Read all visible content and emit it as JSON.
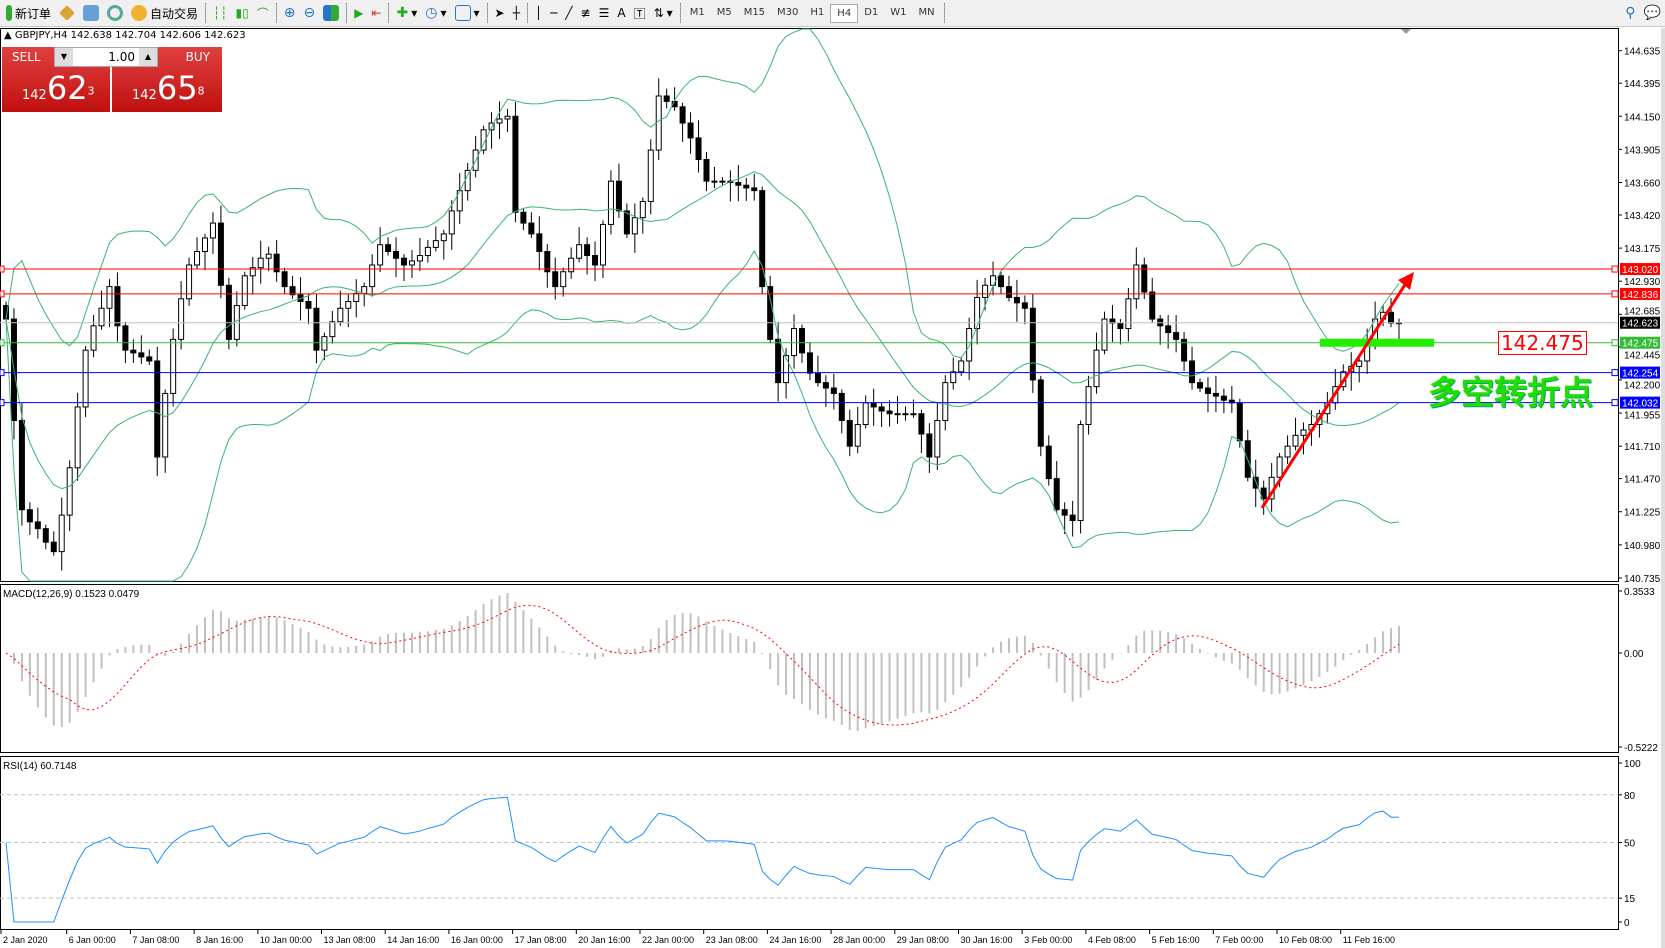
{
  "toolbar": {
    "new_order": "新订单",
    "auto_trading": "自动交易",
    "timeframes": [
      "M1",
      "M5",
      "M15",
      "M30",
      "H1",
      "H4",
      "D1",
      "W1",
      "MN"
    ],
    "active_timeframe": "H4"
  },
  "header": {
    "text": "GBPJPY,H4  142.638 142.704 142.606 142.623"
  },
  "trade": {
    "sell": "SELL",
    "buy": "BUY",
    "lot": "1.00",
    "sell_big": "142",
    "sell_main": "62",
    "sell_sup": "3",
    "buy_big": "142",
    "buy_main": "65",
    "buy_sup": "8"
  },
  "price_axis": [
    "144.635",
    "144.395",
    "144.150",
    "143.905",
    "143.660",
    "143.420",
    "143.175",
    "142.930",
    "142.685",
    "142.445",
    "142.200",
    "141.955",
    "141.710",
    "141.470",
    "141.225",
    "140.980",
    "140.735"
  ],
  "levels": [
    {
      "price": "143.020",
      "color": "#ff0000"
    },
    {
      "price": "142.836",
      "color": "#ff0000"
    },
    {
      "price": "142.623",
      "color": "#000000",
      "line": "#c0c0c0"
    },
    {
      "price": "142.475",
      "color": "#33bb33"
    },
    {
      "price": "142.254",
      "color": "#0000ff"
    },
    {
      "price": "142.032",
      "color": "#0000ff"
    }
  ],
  "annotations": {
    "price_box": "142.475",
    "note": "多空转折点"
  },
  "macd": {
    "label": "MACD(12,26,9) 0.1523 0.0479",
    "axis": [
      "0.3533",
      "0.00",
      "-0.5222"
    ]
  },
  "rsi": {
    "label": "RSI(14) 60.7148",
    "axis": [
      "100",
      "80",
      "50",
      "15",
      "0"
    ]
  },
  "time_axis": [
    "2 Jan 2020",
    "6 Jan 00:00",
    "7 Jan 08:00",
    "8 Jan 16:00",
    "10 Jan 00:00",
    "13 Jan 08:00",
    "14 Jan 16:00",
    "16 Jan 00:00",
    "17 Jan 08:00",
    "20 Jan 16:00",
    "22 Jan 00:00",
    "23 Jan 08:00",
    "24 Jan 16:00",
    "28 Jan 00:00",
    "29 Jan 08:00",
    "30 Jan 16:00",
    "3 Feb 00:00",
    "4 Feb 08:00",
    "5 Feb 16:00",
    "7 Feb 00:00",
    "10 Feb 08:00",
    "11 Feb 16:00"
  ],
  "chart_data": {
    "type": "candlestick",
    "symbol": "GBPJPY",
    "timeframe": "H4",
    "ylim": [
      140.735,
      144.635
    ],
    "colors": {
      "bollinger": "#3cb371",
      "macd_hist": "#c0c0c0",
      "macd_signal": "#ff0000",
      "rsi": "#1e90ff",
      "arrow": "#ff0000",
      "zone": "#22ee00"
    },
    "close": [
      142.65,
      141.9,
      141.24,
      141.15,
      141.1,
      141.0,
      140.93,
      141.2,
      141.55,
      142.0,
      142.42,
      142.6,
      142.73,
      142.89,
      142.6,
      142.42,
      142.4,
      142.37,
      142.34,
      141.63,
      142.1,
      142.5,
      142.8,
      143.05,
      143.15,
      143.25,
      143.36,
      142.9,
      142.5,
      142.75,
      142.97,
      143.03,
      143.1,
      143.13,
      143.0,
      142.89,
      142.83,
      142.78,
      142.73,
      142.42,
      142.52,
      142.63,
      142.73,
      142.78,
      142.84,
      142.89,
      143.05,
      143.2,
      143.15,
      143.1,
      143.05,
      143.08,
      143.12,
      143.18,
      143.23,
      143.28,
      143.45,
      143.6,
      143.75,
      143.9,
      144.05,
      144.1,
      144.13,
      144.15,
      143.44,
      143.36,
      143.28,
      143.15,
      143.0,
      142.89,
      143.0,
      143.1,
      143.2,
      143.12,
      143.05,
      143.35,
      143.67,
      143.45,
      143.28,
      143.4,
      143.52,
      143.9,
      144.3,
      144.26,
      144.22,
      144.1,
      143.99,
      143.83,
      143.67,
      143.67,
      143.67,
      143.66,
      143.64,
      143.62,
      143.6,
      142.89,
      142.5,
      142.18,
      142.38,
      142.58,
      142.4,
      142.25,
      142.18,
      142.14,
      142.1,
      141.9,
      141.71,
      141.87,
      142.03,
      142.0,
      141.97,
      141.95,
      141.95,
      141.95,
      141.95,
      141.8,
      141.63,
      141.9,
      142.18,
      142.26,
      142.34,
      142.58,
      142.81,
      142.9,
      142.97,
      142.89,
      142.81,
      142.77,
      142.73,
      142.2,
      141.71,
      141.47,
      141.24,
      141.2,
      141.16,
      141.87,
      142.15,
      142.42,
      142.65,
      142.62,
      142.58,
      142.8,
      143.05,
      142.85,
      142.65,
      142.6,
      142.55,
      142.5,
      142.34,
      142.18,
      142.14,
      142.1,
      142.08,
      142.05,
      142.03,
      141.75,
      141.48,
      141.4,
      141.32,
      141.48,
      141.63,
      141.71,
      141.79,
      141.83,
      141.87,
      141.95,
      142.03,
      142.15,
      142.26,
      142.3,
      142.34,
      142.5,
      142.65,
      142.7,
      142.62,
      142.623
    ]
  }
}
